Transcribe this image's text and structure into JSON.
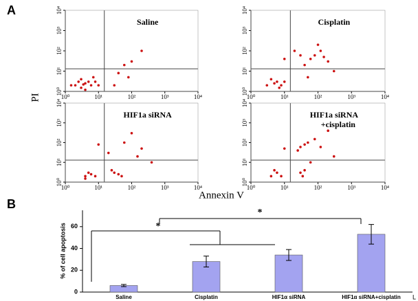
{
  "figure": {
    "panel_a_label": "A",
    "panel_b_label": "B",
    "y_label": "PI",
    "x_label": "Annexin V"
  },
  "chart_data": [
    {
      "type": "scatter",
      "title": "Saline",
      "log_x": true,
      "log_y": true,
      "color": "#cc1111",
      "xlim": [
        1,
        10000
      ],
      "ylim": [
        1,
        10000
      ],
      "xticks": [
        {
          "value": 1,
          "label": "10⁰"
        },
        {
          "value": 10,
          "label": "10¹"
        },
        {
          "value": 100,
          "label": "10²"
        },
        {
          "value": 1000,
          "label": "10³"
        },
        {
          "value": 10000,
          "label": "10⁴"
        }
      ],
      "yticks": [
        {
          "value": 1,
          "label": "10⁰"
        },
        {
          "value": 10,
          "label": "10¹"
        },
        {
          "value": 100,
          "label": "10²"
        },
        {
          "value": 1000,
          "label": "10³"
        },
        {
          "value": 10000,
          "label": "10⁴"
        }
      ],
      "gate_x": 15,
      "gate_y": 13,
      "x": [
        2,
        3,
        4,
        5,
        3,
        2.5,
        6,
        4,
        8,
        1.5,
        7,
        3.5,
        10,
        40,
        100,
        200,
        60,
        30,
        80
      ],
      "y": [
        2,
        1.5,
        2.5,
        3,
        4,
        3,
        2,
        1.2,
        3,
        2,
        5,
        2.2,
        2,
        8,
        30,
        100,
        20,
        2,
        5
      ]
    },
    {
      "type": "scatter",
      "title": "Cisplatin",
      "log_x": true,
      "log_y": true,
      "color": "#cc1111",
      "xlim": [
        1,
        10000
      ],
      "ylim": [
        1,
        10000
      ],
      "xticks": [
        {
          "value": 1,
          "label": "10⁰"
        },
        {
          "value": 10,
          "label": "10¹"
        },
        {
          "value": 100,
          "label": "10²"
        },
        {
          "value": 1000,
          "label": "10³"
        },
        {
          "value": 10000,
          "label": "10⁴"
        }
      ],
      "yticks": [
        {
          "value": 1,
          "label": "10⁰"
        },
        {
          "value": 10,
          "label": "10¹"
        },
        {
          "value": 100,
          "label": "10²"
        },
        {
          "value": 1000,
          "label": "10³"
        },
        {
          "value": 10000,
          "label": "10⁴"
        }
      ],
      "gate_x": 15,
      "gate_y": 13,
      "x": [
        3,
        5,
        6,
        8,
        4,
        10,
        7,
        80,
        120,
        60,
        150,
        100,
        40,
        30,
        200,
        20,
        300,
        50,
        10
      ],
      "y": [
        2,
        2.5,
        3,
        2,
        4,
        3,
        1.5,
        60,
        100,
        40,
        50,
        200,
        20,
        60,
        30,
        100,
        10,
        5,
        40
      ]
    },
    {
      "type": "scatter",
      "title": "HIF1a siRNA",
      "log_x": true,
      "log_y": true,
      "color": "#cc1111",
      "xlim": [
        1,
        10000
      ],
      "ylim": [
        1,
        10000
      ],
      "xticks": [
        {
          "value": 1,
          "label": "10⁰"
        },
        {
          "value": 10,
          "label": "10¹"
        },
        {
          "value": 100,
          "label": "10²"
        },
        {
          "value": 1000,
          "label": "10³"
        },
        {
          "value": 10000,
          "label": "10⁴"
        }
      ],
      "yticks": [
        {
          "value": 1,
          "label": "10⁰"
        },
        {
          "value": 10,
          "label": "10¹"
        },
        {
          "value": 100,
          "label": "10²"
        },
        {
          "value": 1000,
          "label": "10³"
        },
        {
          "value": 10000,
          "label": "10⁴"
        }
      ],
      "gate_x": 15,
      "gate_y": 13,
      "x": [
        4,
        5,
        6,
        8,
        4,
        30,
        40,
        25,
        50,
        60,
        100,
        200,
        20,
        400,
        10,
        150
      ],
      "y": [
        2,
        3,
        2.5,
        2,
        1.5,
        3,
        2.5,
        4,
        2,
        100,
        300,
        50,
        30,
        10,
        80,
        20
      ]
    },
    {
      "type": "scatter",
      "title": "HIF1a siRNA",
      "subtitle": "+cisplatin",
      "log_x": true,
      "log_y": true,
      "color": "#cc1111",
      "xlim": [
        1,
        10000
      ],
      "ylim": [
        1,
        10000
      ],
      "xticks": [
        {
          "value": 1,
          "label": "10⁰"
        },
        {
          "value": 10,
          "label": "10¹"
        },
        {
          "value": 100,
          "label": "10²"
        },
        {
          "value": 1000,
          "label": "10³"
        },
        {
          "value": 10000,
          "label": "10⁴"
        }
      ],
      "yticks": [
        {
          "value": 1,
          "label": "10⁰"
        },
        {
          "value": 10,
          "label": "10¹"
        },
        {
          "value": 100,
          "label": "10²"
        },
        {
          "value": 1000,
          "label": "10³"
        },
        {
          "value": 10000,
          "label": "10⁴"
        }
      ],
      "gate_x": 15,
      "gate_y": 13,
      "x": [
        4,
        6,
        8,
        5,
        30,
        40,
        35,
        30,
        40,
        50,
        25,
        80,
        120,
        300,
        10,
        200,
        60
      ],
      "y": [
        2,
        3,
        2,
        4,
        3,
        4,
        2,
        60,
        80,
        100,
        40,
        150,
        60,
        20,
        50,
        400,
        10
      ]
    },
    {
      "type": "bar",
      "y_label": "% of cell apoptosis",
      "x_label": "L",
      "categories": [
        "Saline",
        "Cisplatin",
        "HIF1α siRNA",
        "HIF1α siRNA+cisplatin"
      ],
      "values": [
        6,
        28,
        34,
        53
      ],
      "errors": [
        1,
        5,
        5,
        9
      ],
      "color": "#a3a3f0",
      "ylim": [
        0,
        75
      ],
      "yticks": [
        0,
        20,
        40,
        60
      ],
      "annotations": [
        "*",
        "*"
      ]
    }
  ]
}
